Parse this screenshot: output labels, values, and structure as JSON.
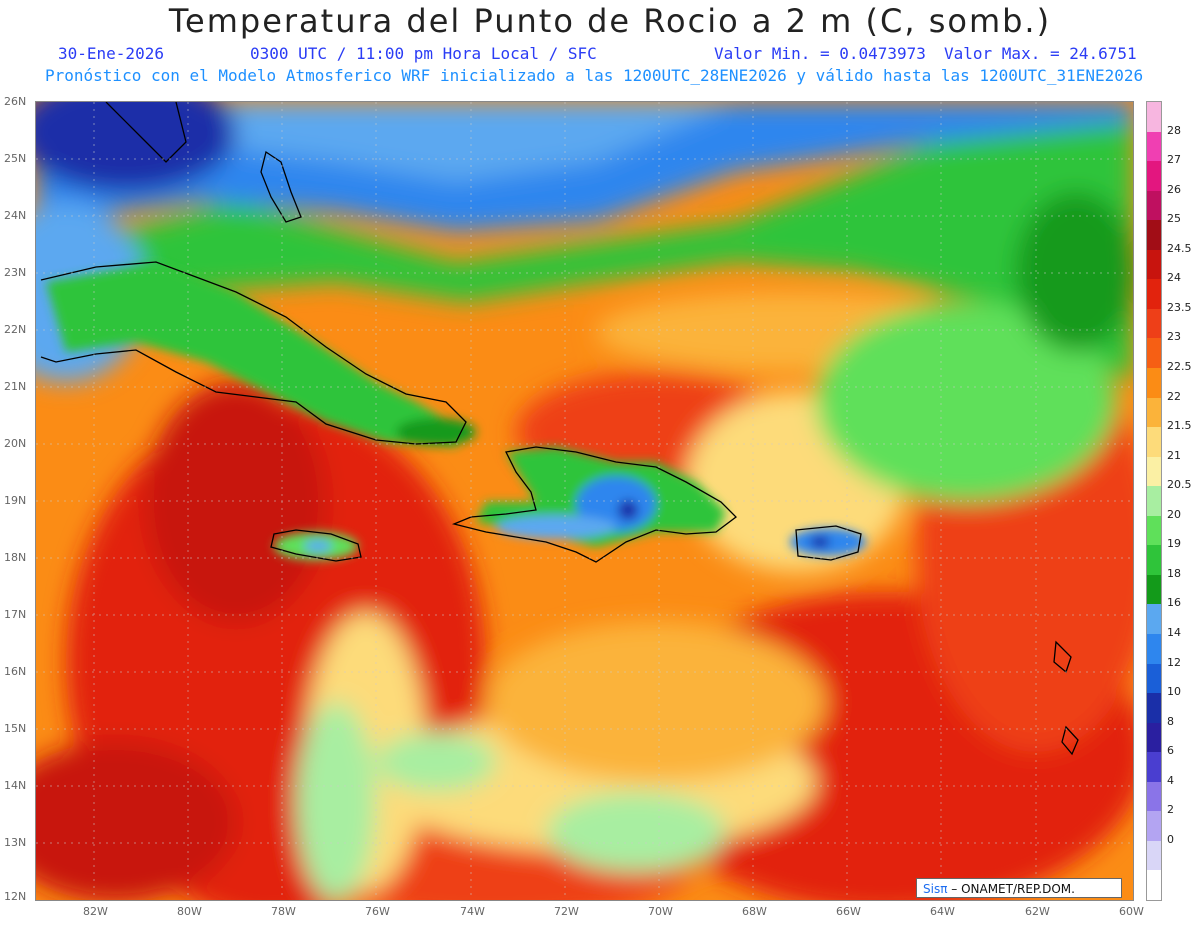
{
  "title": "Temperatura del Punto de Rocio a 2 m (C, somb.)",
  "header": {
    "date": "30-Ene-2026",
    "time": "0300 UTC / 11:00 pm Hora Local / SFC",
    "min": "Valor Min. = 0.0473973",
    "max": "Valor Max. = 24.6751",
    "model": "Pronóstico con el Modelo Atmosferico WRF inicializado a las 1200UTC_28ENE2026 y válido hasta las  1200UTC_31ENE2026"
  },
  "axes": {
    "lat_labels": [
      "26N",
      "25N",
      "24N",
      "23N",
      "22N",
      "21N",
      "20N",
      "19N",
      "18N",
      "17N",
      "16N",
      "15N",
      "14N",
      "13N",
      "12N"
    ],
    "lon_labels": [
      "82W",
      "80W",
      "78W",
      "76W",
      "74W",
      "72W",
      "70W",
      "68W",
      "66W",
      "64W",
      "62W",
      "60W"
    ]
  },
  "colorbar": {
    "labels": [
      "28",
      "27",
      "26",
      "25",
      "24.5",
      "24",
      "23.5",
      "23",
      "22.5",
      "22",
      "21.5",
      "21",
      "20.5",
      "20",
      "19",
      "18",
      "16",
      "14",
      "12",
      "10",
      "8",
      "6",
      "4",
      "2",
      "0"
    ],
    "colors": [
      "#f7b6e0",
      "#f03fb2",
      "#e3167f",
      "#bf1060",
      "#a10d16",
      "#c8140e",
      "#e2230d",
      "#ee3f18",
      "#f65f14",
      "#fb8c15",
      "#fbb33a",
      "#fddb7a",
      "#fbf0a4",
      "#a8eea1",
      "#5fe05a",
      "#2fc43a",
      "#139a1a",
      "#5ba8f0",
      "#2e86ee",
      "#1a5fd8",
      "#1a2fa8",
      "#2a1fa0",
      "#4a3ed0",
      "#8a74e8",
      "#b3a4f2",
      "#d9d6f7",
      "#ffffff"
    ]
  },
  "credit": {
    "brand": "Sisπ",
    "text": " – ONAMET/REP.DOM."
  },
  "chart_data": {
    "type": "heatmap",
    "variable": "Temperatura del Punto de Rocio a 2 m",
    "units": "C",
    "min": 0.0473973,
    "max": 24.6751,
    "lon_range": [
      -83.2,
      -60
    ],
    "lat_range": [
      12,
      26
    ]
  }
}
